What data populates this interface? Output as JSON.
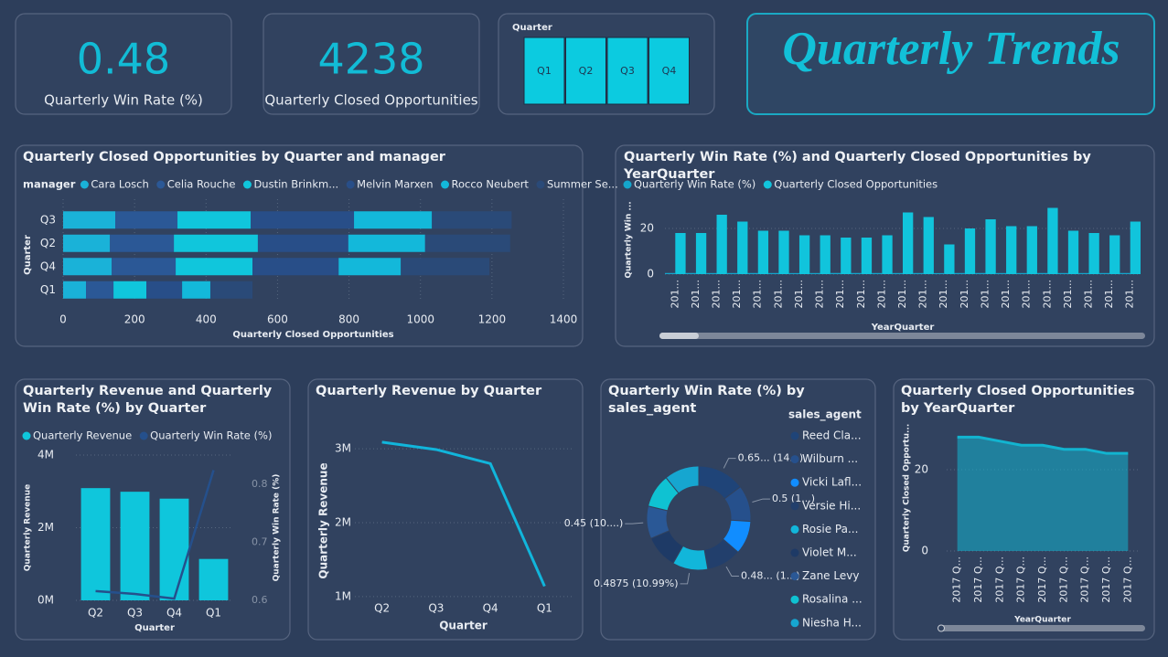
{
  "header": {
    "title": "Quarterly Trends"
  },
  "cards": [
    {
      "value": 0.48,
      "label": "Quarterly Win Rate (%)"
    },
    {
      "value": 4238,
      "label": "Quarterly Closed Opportunities"
    }
  ],
  "slicer": {
    "title": "Quarter",
    "items": [
      "Q1",
      "Q2",
      "Q3",
      "Q4"
    ]
  },
  "chart_data": [
    {
      "type": "bar",
      "orientation": "horizontal",
      "stacked": true,
      "grid": true,
      "title": "Quarterly Closed Opportunities by Quarter and manager",
      "legend_title": "manager",
      "xlabel": "Quarterly Closed Opportunities",
      "ylabel": "Quarter",
      "categories": [
        "Q3",
        "Q2",
        "Q4",
        "Q1"
      ],
      "series": [
        {
          "name": "Cara Losch",
          "color": "#1ab2d8",
          "values": [
            146,
            131,
            136,
            64
          ]
        },
        {
          "name": "Celia Rouche",
          "color": "#2b5896",
          "values": [
            174,
            179,
            179,
            77
          ]
        },
        {
          "name": "Dustin Brinkm...",
          "color": "#10c6dc",
          "values": [
            205,
            235,
            215,
            92
          ]
        },
        {
          "name": "Melvin Marxen",
          "color": "#284e88",
          "values": [
            289,
            253,
            241,
            100
          ]
        },
        {
          "name": "Rocco Neubert",
          "color": "#13b8da",
          "values": [
            218,
            215,
            174,
            79
          ]
        },
        {
          "name": "Summer Se...",
          "color": "#2a4a78",
          "values": [
            223,
            238,
            248,
            118
          ]
        }
      ],
      "xlim": [
        0,
        1400
      ],
      "xticks": [
        0,
        200,
        400,
        600,
        800,
        1000,
        1200,
        1400
      ]
    },
    {
      "type": "bar",
      "orientation": "vertical",
      "stacked": false,
      "grid": true,
      "title": "Quarterly Win Rate (%) and Quarterly Closed Opportunities by YearQuarter",
      "xlabel": "YearQuarter",
      "ylabel": "Quarterly Win ...",
      "categories": [
        "201...",
        "201...",
        "201...",
        "201...",
        "201...",
        "201...",
        "201...",
        "201...",
        "201...",
        "201...",
        "201...",
        "201...",
        "201...",
        "201...",
        "201...",
        "201...",
        "201...",
        "201...",
        "201...",
        "201...",
        "201...",
        "201...",
        "201..."
      ],
      "series": [
        {
          "name": "Quarterly Win Rate (%)",
          "color": "#14a6cc",
          "values": [
            0.49,
            0.5,
            0.47,
            0.48,
            0.49,
            0.48,
            0.46,
            0.47,
            0.5,
            0.49,
            0.48,
            0.47,
            0.48,
            0.45,
            0.49,
            0.5,
            0.48,
            0.47,
            0.49,
            0.48,
            0.47,
            0.48,
            0.49
          ]
        },
        {
          "name": "Quarterly Closed Opportunities",
          "color": "#11c4dc",
          "values": [
            18,
            18,
            26,
            23,
            19,
            19,
            17,
            17,
            16,
            16,
            17,
            27,
            25,
            13,
            20,
            24,
            21,
            21,
            29,
            19,
            18,
            17,
            23
          ]
        }
      ],
      "ylim": [
        0,
        30
      ],
      "yticks": [
        0,
        20
      ]
    },
    {
      "type": "combo",
      "grid": true,
      "title": "Quarterly Revenue and Quarterly Win Rate (%) by Quarter",
      "xlabel": "Quarter",
      "ylabel": "Quarterly Revenue",
      "y2label": "Quarterly Win Rate (%)",
      "categories": [
        "Q2",
        "Q3",
        "Q4",
        "Q1"
      ],
      "series": [
        {
          "name": "Quarterly Revenue",
          "color": "#0fc6dc",
          "values": [
            3090000,
            2990000,
            2800000,
            1140000
          ]
        },
        {
          "name": "Quarterly Win Rate (%)",
          "color": "#25508c",
          "axis": "y2",
          "values": [
            0.616,
            0.611,
            0.603,
            0.824
          ]
        }
      ],
      "ylim": [
        0,
        4000000
      ],
      "yticks": [
        {
          "value": 0,
          "label": "0M"
        },
        {
          "value": 2000000,
          "label": "2M"
        },
        {
          "value": 4000000,
          "label": "4M"
        }
      ],
      "y2lim": [
        0.6,
        0.85
      ],
      "y2ticks": [
        0.6,
        0.7,
        0.8
      ]
    },
    {
      "type": "line",
      "grid": true,
      "title": "Quarterly Revenue by Quarter",
      "xlabel": "Quarter",
      "ylabel": "Quarterly Revenue",
      "color": "#11b5db",
      "categories": [
        "Q2",
        "Q3",
        "Q4",
        "Q1"
      ],
      "values": [
        3090000,
        2990000,
        2800000,
        1140000
      ],
      "ylim": [
        850000,
        3200000
      ],
      "yticks": [
        {
          "value": 1000000,
          "label": "1M"
        },
        {
          "value": 2000000,
          "label": "2M"
        },
        {
          "value": 3000000,
          "label": "3M"
        }
      ]
    },
    {
      "type": "pie",
      "donut": true,
      "title": "Quarterly Win Rate (%) by sales_agent",
      "legend_title": "sales_agent",
      "categories": [
        "Reed Cla...",
        "Wilburn ...",
        "Vicki Lafl...",
        "Versie Hi...",
        "Rosie Pa...",
        "Violet M...",
        "Zane Levy",
        "Rosalina ...",
        "Niesha H..."
      ],
      "values": [
        0.6538,
        0.5,
        0.46,
        0.4815,
        0.4875,
        0.46,
        0.45,
        0.4632,
        0.48
      ],
      "value_labels": [
        "0.65... (14...)",
        "0.5 (1...)",
        null,
        "0.48... (1...)",
        "0.4875 (10.99%)",
        null,
        "0.45 (10....)",
        null,
        null
      ],
      "colors": [
        "#1f4478",
        "#26508c",
        "#118dff",
        "#223f6c",
        "#12b6da",
        "#1e3a66",
        "#2a5896",
        "#0fc2d2",
        "#16a6d0"
      ]
    },
    {
      "type": "area",
      "grid": true,
      "title": "Quarterly Closed Opportunities by YearQuarter",
      "xlabel": "YearQuarter",
      "ylabel": "Quarterly Closed Opportu...",
      "color": "#12b4d0",
      "categories": [
        "2017 Q...",
        "2017 Q...",
        "2017 Q...",
        "2017 Q...",
        "2017 Q...",
        "2017 Q...",
        "2017 Q...",
        "2017 Q...",
        "2017 Q..."
      ],
      "values": [
        28,
        28,
        27,
        26,
        26,
        25,
        25,
        24,
        24
      ],
      "ylim": [
        0,
        31
      ],
      "yticks": [
        0,
        20
      ]
    }
  ]
}
